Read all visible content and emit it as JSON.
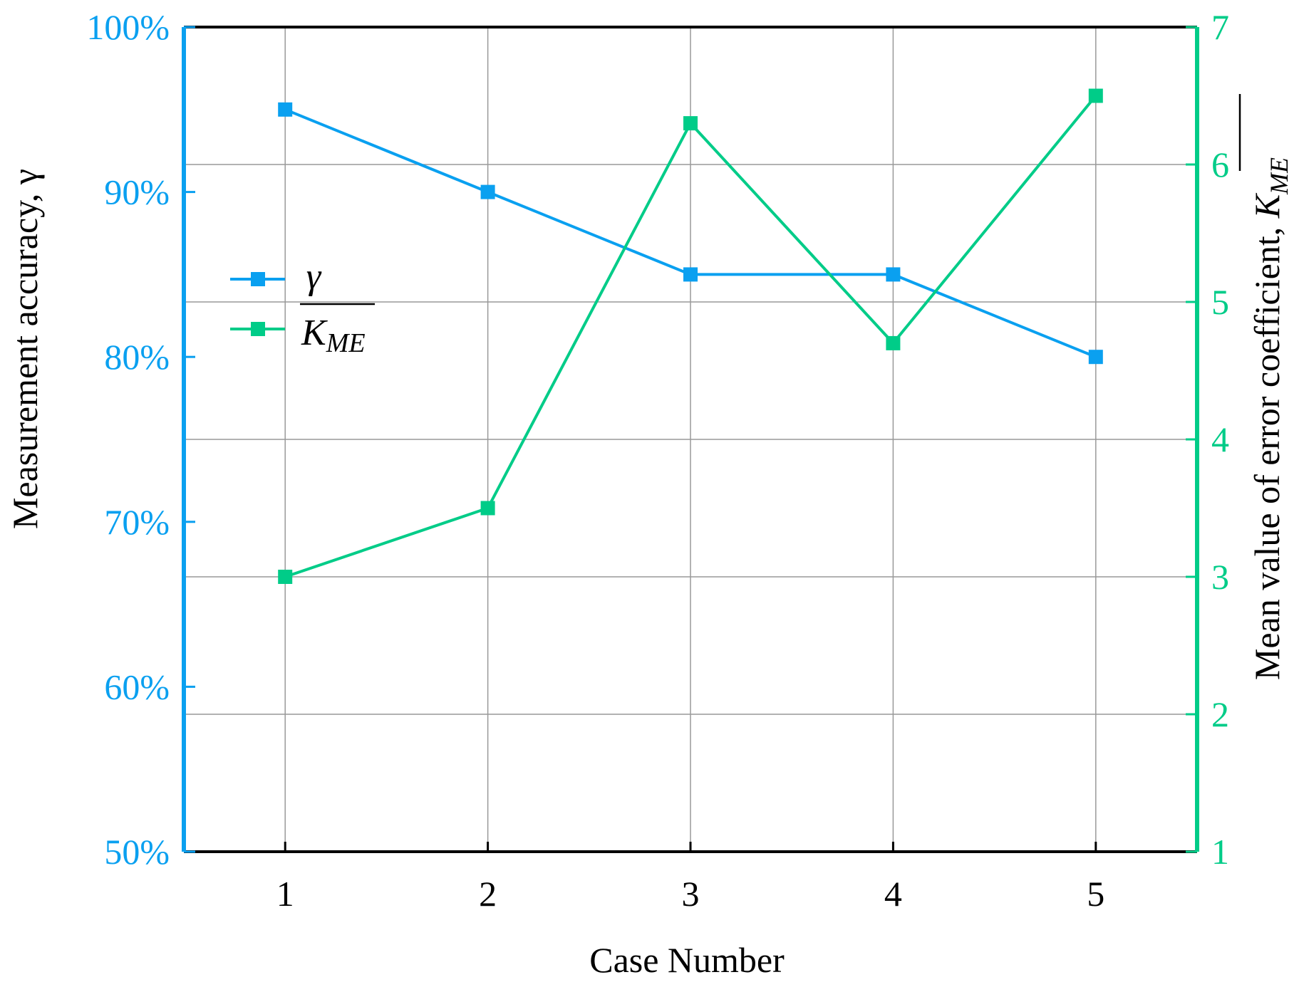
{
  "chart_data": {
    "type": "line",
    "xlabel": "Case Number",
    "ylabel_left": "Measurement accuracy, γ",
    "ylabel_right": "Mean value of error coefficient, ",
    "ylabel_right_symbol": "K",
    "ylabel_right_subscript": "ME",
    "x": [
      1,
      2,
      3,
      4,
      5
    ],
    "x_tick_labels": [
      "1",
      "2",
      "3",
      "4",
      "5"
    ],
    "xlim": [
      0.5,
      5.5
    ],
    "ylim_left": [
      50,
      100
    ],
    "y_left_tick_labels": [
      "50%",
      "60%",
      "70%",
      "80%",
      "90%",
      "100%"
    ],
    "ylim_right": [
      1,
      7
    ],
    "y_right_tick_labels": [
      "1",
      "2",
      "3",
      "4",
      "5",
      "6",
      "7"
    ],
    "grid": true,
    "legend_position": "upper-left",
    "series": [
      {
        "name": "γ",
        "axis": "left",
        "color": "#0aa0f0",
        "values": [
          95,
          90,
          85,
          85,
          80
        ]
      },
      {
        "name": "K",
        "name_subscript": "ME",
        "axis": "right",
        "color": "#00cc88",
        "values": [
          3.0,
          3.5,
          6.3,
          4.7,
          6.5
        ]
      }
    ],
    "colors": {
      "left_axis": "#0aa0f0",
      "right_axis": "#00cc88",
      "frame": "#000000",
      "grid": "#999999"
    }
  }
}
